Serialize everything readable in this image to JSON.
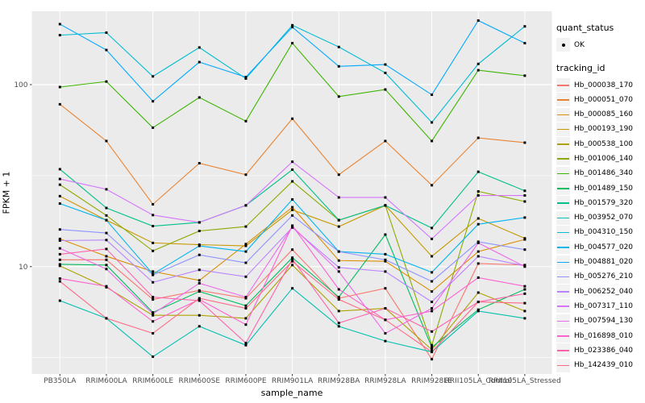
{
  "y_axis": {
    "label": "FPKM + 1",
    "ticks": [
      {
        "label": "100",
        "value": 100
      },
      {
        "label": "10",
        "value": 10
      }
    ]
  },
  "x_axis": {
    "label": "sample_name"
  },
  "legend": {
    "quant_title": "quant_status",
    "quant_items": [
      {
        "label": "OK",
        "marker": "black-point"
      }
    ],
    "tracking_title": "tracking_id"
  },
  "colors": {
    "panel_bg": "#EBEBEB",
    "grid": "#FFFFFF",
    "tick_text": "#4D4D4D",
    "tick_mark": "#333333",
    "key_bg": "#F2F2F2",
    "point": "#000000"
  },
  "chart_data": {
    "type": "line",
    "title": "",
    "xlabel": "sample_name",
    "ylabel": "FPKM + 1",
    "y_scale": "log10",
    "ylim": [
      2.6,
      253
    ],
    "y_major_ticks": [
      10,
      100
    ],
    "y_minor_ticks": [
      3.162,
      31.62
    ],
    "grid": true,
    "legend_position": "right",
    "point_marker": "black-square",
    "x_categories": [
      "PB350LA",
      "RRIM600LA",
      "RRIM600LE",
      "RRIM600SE",
      "RRIM600PE",
      "RRIM901LA",
      "RRIM928BA",
      "RRIM928LA",
      "RRIM928LE",
      "RRII105LA_Control",
      "RRII105LA_Stressed"
    ],
    "series": [
      {
        "name": "Hb_000038_170",
        "color": "#F8766D",
        "values": [
          10.9,
          10.9,
          6.6,
          7.4,
          6.7,
          12.4,
          6.7,
          7.6,
          3.1,
          10.4,
          10.2
        ]
      },
      {
        "name": "Hb_000051_070",
        "color": "#EA8331",
        "values": [
          78,
          49,
          22,
          37,
          32,
          65,
          32,
          49,
          28,
          51,
          48
        ]
      },
      {
        "name": "Hb_000085_160",
        "color": "#DB8E00",
        "values": [
          14.2,
          11.4,
          9.4,
          8.4,
          13.3,
          21.2,
          10.8,
          10.7,
          7.3,
          12.1,
          14.1
        ]
      },
      {
        "name": "Hb_000193_190",
        "color": "#C79800",
        "values": [
          24.4,
          18.0,
          13.5,
          13.2,
          13.0,
          20.5,
          16.6,
          21.7,
          11.4,
          18.4,
          14.3
        ]
      },
      {
        "name": "Hb_000538_100",
        "color": "#AEA200",
        "values": [
          10.1,
          7.7,
          5.4,
          5.4,
          5.2,
          10.2,
          5.7,
          5.9,
          3.5,
          7.2,
          5.7
        ]
      },
      {
        "name": "Hb_001006_140",
        "color": "#8CAB00",
        "values": [
          28.2,
          19.1,
          12.2,
          15.7,
          16.6,
          29.4,
          18.0,
          21.7,
          3.7,
          25.9,
          22.8
        ]
      },
      {
        "name": "Hb_001486_340",
        "color": "#3CB500",
        "values": [
          97,
          104,
          58,
          85,
          63,
          169,
          86,
          94,
          49,
          120,
          112
        ]
      },
      {
        "name": "Hb_001489_150",
        "color": "#00BD5F",
        "values": [
          10.3,
          10.2,
          5.6,
          7.3,
          6.1,
          11.2,
          6.8,
          15.0,
          3.6,
          5.8,
          7.5
        ]
      },
      {
        "name": "Hb_001579_320",
        "color": "#00C08B",
        "values": [
          34.3,
          21.0,
          16.7,
          17.5,
          21.7,
          34.1,
          18.0,
          21.7,
          16.3,
          33.2,
          26.1
        ]
      },
      {
        "name": "Hb_003952_070",
        "color": "#00C0AF",
        "values": [
          6.5,
          5.2,
          3.2,
          4.7,
          3.7,
          7.6,
          4.7,
          3.9,
          3.4,
          5.7,
          5.2
        ]
      },
      {
        "name": "Hb_004310_150",
        "color": "#00BDD1",
        "values": [
          187,
          193,
          111,
          160,
          108,
          212,
          161,
          116,
          62,
          130,
          209
        ]
      },
      {
        "name": "Hb_004577_020",
        "color": "#00B5EE",
        "values": [
          22.2,
          18.0,
          9.1,
          13.0,
          12.1,
          23.4,
          12.1,
          11.7,
          9.3,
          17.1,
          18.6
        ]
      },
      {
        "name": "Hb_004881_020",
        "color": "#00A9FF",
        "values": [
          215,
          155,
          81,
          133,
          110,
          207,
          126,
          129,
          88,
          225,
          169
        ]
      },
      {
        "name": "Hb_005276_210",
        "color": "#8E93FF",
        "values": [
          16.0,
          15.3,
          9.0,
          11.6,
          10.5,
          19.1,
          12.1,
          10.9,
          8.3,
          13.7,
          12.4
        ]
      },
      {
        "name": "Hb_006252_040",
        "color": "#B983FF",
        "values": [
          13.9,
          14.0,
          8.2,
          9.6,
          8.8,
          16.4,
          9.9,
          9.4,
          6.4,
          11.4,
          10.1
        ]
      },
      {
        "name": "Hb_007317_110",
        "color": "#D575FE",
        "values": [
          30.3,
          26.6,
          19.2,
          17.5,
          21.7,
          37.7,
          24.0,
          24.0,
          14.2,
          24.6,
          24.6
        ]
      },
      {
        "name": "Hb_007594_130",
        "color": "#EF67EB",
        "values": [
          12.6,
          9.7,
          5.5,
          8.1,
          6.8,
          16.6,
          9.4,
          4.3,
          5.9,
          13.5,
          10.0
        ]
      },
      {
        "name": "Hb_016898_010",
        "color": "#FD61D1",
        "values": [
          8.6,
          7.8,
          5.0,
          6.6,
          4.8,
          16.8,
          7.5,
          5.1,
          5.7,
          8.7,
          7.8
        ]
      },
      {
        "name": "Hb_023386_040",
        "color": "#FF62AD",
        "values": [
          11.7,
          12.5,
          6.8,
          6.5,
          3.8,
          11.0,
          4.9,
          5.9,
          4.4,
          6.4,
          7.1
        ]
      },
      {
        "name": "Hb_142439_010",
        "color": "#FF6A85",
        "values": [
          8.3,
          5.2,
          4.3,
          6.7,
          5.9,
          10.7,
          6.6,
          5.1,
          3.4,
          6.4,
          6.3
        ]
      }
    ]
  }
}
